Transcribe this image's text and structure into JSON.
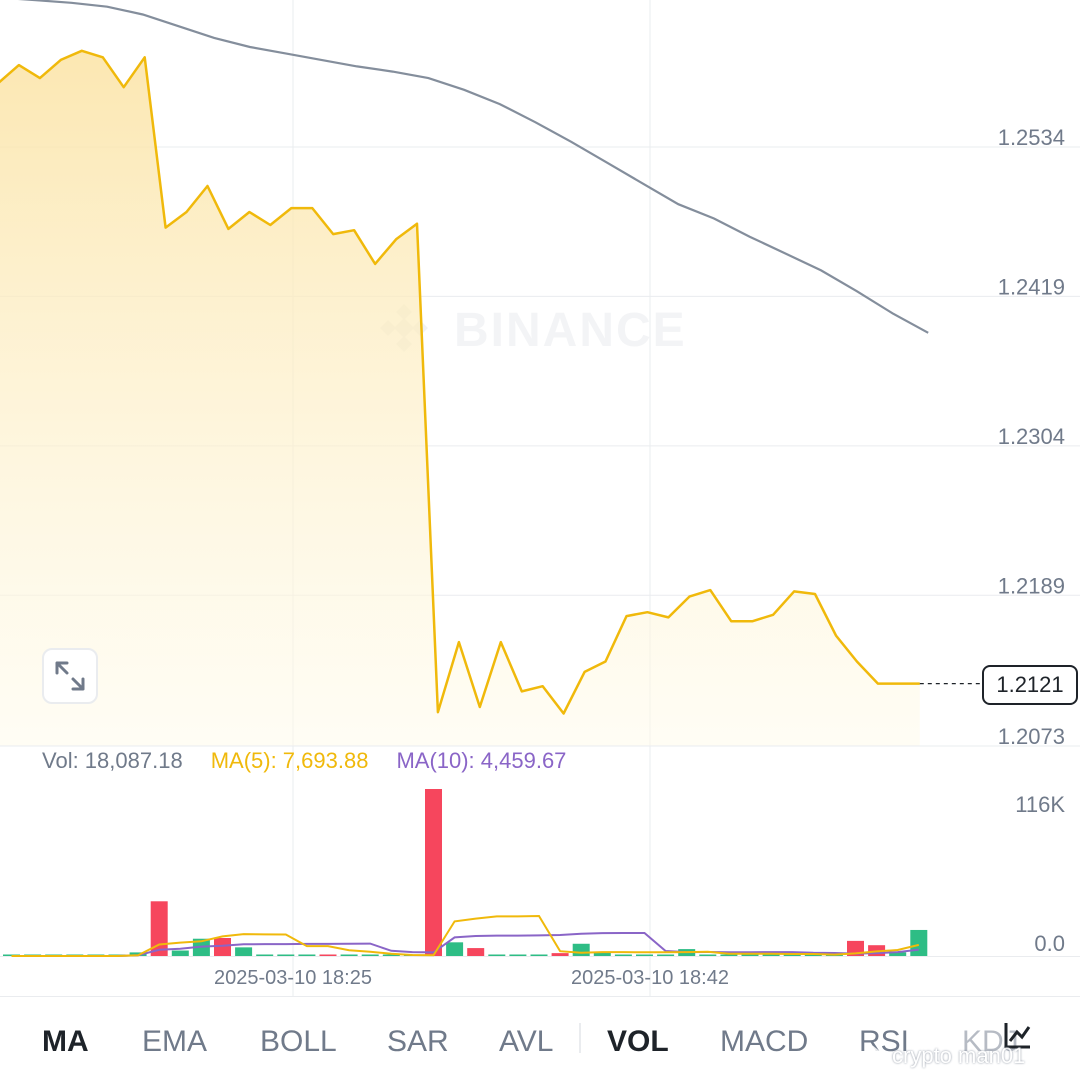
{
  "watermark": "BINANCE",
  "chart_data": [
    {
      "type": "area",
      "price_axis": [
        "1.2534",
        "1.2419",
        "1.2304",
        "1.2189",
        "1.2073"
      ],
      "ylim": [
        1.2073,
        1.2649
      ],
      "current_price": "1.2121",
      "series": [
        {
          "values": [
            1.2583,
            1.2597,
            1.2587,
            1.2601,
            1.2608,
            1.2603,
            1.258,
            1.2603,
            1.2472,
            1.2484,
            1.2504,
            1.2471,
            1.2484,
            1.2474,
            1.2487,
            1.2487,
            1.2467,
            1.247,
            1.2444,
            1.2463,
            1.2475,
            1.2099,
            1.2153,
            1.2103,
            1.2153,
            1.2115,
            1.2119,
            1.2098,
            1.213,
            1.2138,
            1.2173,
            1.2176,
            1.2172,
            1.2188,
            1.2193,
            1.2169,
            1.2169,
            1.2174,
            1.2192,
            1.219,
            1.2158,
            1.2138,
            1.2121,
            1.2121,
            1.2121
          ]
        },
        {
          "values": [
            1.2649,
            1.2647,
            1.2645,
            1.2642,
            1.2636,
            1.2627,
            1.2618,
            1.2611,
            1.2606,
            1.2601,
            1.2596,
            1.2592,
            1.2587,
            1.2578,
            1.2567,
            1.2553,
            1.2538,
            1.2522,
            1.2506,
            1.249,
            1.2479,
            1.2465,
            1.2452,
            1.2439,
            1.2423,
            1.2406,
            1.2391
          ]
        }
      ]
    },
    {
      "type": "bar",
      "labels": {
        "vol": "Vol: 18,087.18",
        "ma5": "MA(5): 7,693.88",
        "ma10": "MA(10): 4,459.67"
      },
      "volume_axis": [
        "116K",
        "0.0"
      ],
      "ylim": [
        0,
        116000
      ],
      "x_ticks": [
        "2025-03-10 18:25",
        "2025-03-10 18:42"
      ],
      "bars": [
        {
          "v": 500,
          "d": "up"
        },
        {
          "v": 500,
          "d": "up"
        },
        {
          "v": 500,
          "d": "up"
        },
        {
          "v": 500,
          "d": "up"
        },
        {
          "v": 500,
          "d": "up"
        },
        {
          "v": 500,
          "d": "up"
        },
        {
          "v": 2500,
          "d": "up"
        },
        {
          "v": 38000,
          "d": "down"
        },
        {
          "v": 3800,
          "d": "up"
        },
        {
          "v": 12000,
          "d": "up"
        },
        {
          "v": 12500,
          "d": "down"
        },
        {
          "v": 6000,
          "d": "up"
        },
        {
          "v": 500,
          "d": "up"
        },
        {
          "v": 500,
          "d": "up"
        },
        {
          "v": 500,
          "d": "up"
        },
        {
          "v": 800,
          "d": "down"
        },
        {
          "v": 500,
          "d": "up"
        },
        {
          "v": 500,
          "d": "up"
        },
        {
          "v": 500,
          "d": "up"
        },
        {
          "v": 500,
          "d": "up"
        },
        {
          "v": 116000,
          "d": "down"
        },
        {
          "v": 9500,
          "d": "up"
        },
        {
          "v": 5500,
          "d": "down"
        },
        {
          "v": 500,
          "d": "up"
        },
        {
          "v": 500,
          "d": "up"
        },
        {
          "v": 500,
          "d": "up"
        },
        {
          "v": 2000,
          "d": "down"
        },
        {
          "v": 8500,
          "d": "up"
        },
        {
          "v": 2800,
          "d": "up"
        },
        {
          "v": 500,
          "d": "up"
        },
        {
          "v": 500,
          "d": "up"
        },
        {
          "v": 500,
          "d": "up"
        },
        {
          "v": 4800,
          "d": "up"
        },
        {
          "v": 1000,
          "d": "up"
        },
        {
          "v": 500,
          "d": "up"
        },
        {
          "v": 500,
          "d": "up"
        },
        {
          "v": 1800,
          "d": "up"
        },
        {
          "v": 500,
          "d": "up"
        },
        {
          "v": 500,
          "d": "up"
        },
        {
          "v": 500,
          "d": "up"
        },
        {
          "v": 10500,
          "d": "down"
        },
        {
          "v": 7500,
          "d": "down"
        },
        {
          "v": 2600,
          "d": "up"
        },
        {
          "v": 18087,
          "d": "up"
        }
      ],
      "ma5": [
        0,
        0,
        0,
        0,
        0,
        0,
        500,
        8000,
        9300,
        10200,
        13600,
        15200,
        15000,
        14900,
        6900,
        6900,
        4000,
        3000,
        1500,
        700,
        500,
        24000,
        26000,
        27500,
        27500,
        27800,
        3300,
        2300,
        2700,
        2700,
        2600,
        2600,
        2700,
        3000,
        1500,
        1500,
        1600,
        1400,
        1400,
        1000,
        1800,
        3200,
        4200,
        7693.88
      ],
      "ma10": [
        0,
        0,
        0,
        0,
        0,
        0,
        500,
        4300,
        5000,
        6500,
        7100,
        8100,
        8300,
        8300,
        8400,
        8400,
        8500,
        8600,
        3600,
        2700,
        2500,
        12900,
        13900,
        14200,
        14200,
        14300,
        14600,
        15500,
        15900,
        16000,
        16000,
        3500,
        2700,
        2800,
        2600,
        2600,
        2700,
        2700,
        2200,
        2100,
        1700,
        2000,
        2700,
        4459.67
      ]
    }
  ],
  "tabs": [
    "MA",
    "EMA",
    "BOLL",
    "SAR",
    "AVL",
    "VOL",
    "MACD",
    "RSI",
    "KDJ"
  ],
  "active_tabs": [
    "MA",
    "VOL"
  ],
  "credit": "crypto man01",
  "colors": {
    "price_line": "#f0b90b",
    "ma_line": "#848e9c",
    "up": "#2ebd85",
    "down": "#f6465d",
    "ma10": "#8a65c7",
    "grid": "#eaecef"
  },
  "icons": {
    "expand": "expand-arrows-icon",
    "settings": "chart-settings-icon"
  }
}
